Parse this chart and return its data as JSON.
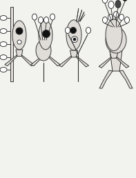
{
  "bg_color": "#f2f2ee",
  "line_color": "#2a2a2a",
  "fill_stipple": "#e0ddd8",
  "fill_dark": "#111111",
  "fill_white": "#ffffff",
  "fig_width": 1.97,
  "fig_height": 2.58,
  "dpi": 100
}
